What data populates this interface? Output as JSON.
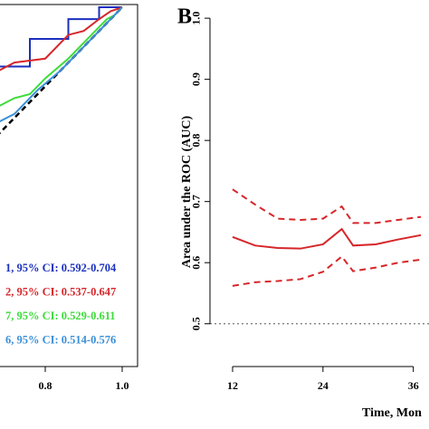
{
  "chart_data": [
    {
      "type": "line",
      "xlim": [
        -0.04,
        1.04
      ],
      "ylim": [
        0.09,
        1.007
      ],
      "xticks": [
        0.8,
        {
          "value": 1.0,
          "label": "1.0"
        }
      ],
      "box": true,
      "reference": {
        "x": [
          0,
          1
        ],
        "values": [
          0,
          1
        ],
        "color": "#000000"
      },
      "series": [
        {
          "name": "1, 95% CI: 0.592-0.704",
          "color": "#1a2fbf",
          "x": [
            0.66,
            0.76,
            0.76,
            0.86,
            0.86,
            0.94,
            0.94,
            1.0
          ],
          "values": [
            0.85,
            0.85,
            0.92,
            0.92,
            0.97,
            0.97,
            1.0,
            1.0
          ]
        },
        {
          "name": "2, 95% CI: 0.537-0.647",
          "color": "#d6262a",
          "x": [
            0.66,
            0.72,
            0.8,
            0.86,
            0.9,
            0.94,
            0.97,
            1.0
          ],
          "values": [
            0.83,
            0.86,
            0.87,
            0.93,
            0.94,
            0.97,
            0.99,
            1.0
          ]
        },
        {
          "name": "7, 95% CI: 0.529-0.611",
          "color": "#3ddc3a",
          "x": [
            0.66,
            0.72,
            0.76,
            0.8,
            0.86,
            0.92,
            0.96,
            0.98,
            1.0
          ],
          "values": [
            0.74,
            0.77,
            0.78,
            0.82,
            0.87,
            0.93,
            0.97,
            0.98,
            1.0
          ]
        },
        {
          "name": "6, 95% CI: 0.514-0.576",
          "color": "#3a8fd8",
          "x": [
            0.66,
            0.72,
            0.78,
            0.84,
            0.9,
            0.96,
            1.0
          ],
          "values": [
            0.7,
            0.73,
            0.79,
            0.84,
            0.9,
            0.96,
            1.0
          ]
        }
      ]
    },
    {
      "type": "line",
      "panel_label": "B",
      "y_label": "Area under the ROC (AUC)",
      "x_label": "Time, Mon",
      "xlim": [
        9,
        40
      ],
      "ylim": [
        0.43,
        1.015
      ],
      "xticks": [
        12,
        24,
        36
      ],
      "yticks": [
        {
          "value": 0.5,
          "label": "0.5"
        },
        0.6,
        0.7,
        0.8,
        0.9,
        {
          "value": 1.0,
          "label": "1.0"
        }
      ],
      "reference": {
        "values": [
          0.5,
          0.5
        ],
        "x": [
          9,
          40
        ],
        "color": "#555555"
      },
      "series": [
        {
          "color": "#d6262a",
          "style": "solid",
          "x": [
            12,
            15,
            18,
            21,
            24,
            26.5,
            28,
            31,
            34,
            37
          ],
          "values": [
            0.642,
            0.628,
            0.624,
            0.623,
            0.63,
            0.655,
            0.628,
            0.63,
            0.638,
            0.645
          ]
        },
        {
          "color": "#d6262a",
          "style": "dashed",
          "x": [
            12,
            15,
            18,
            21,
            24,
            26.5,
            28,
            31,
            34,
            37
          ],
          "values": [
            0.72,
            0.695,
            0.672,
            0.67,
            0.672,
            0.692,
            0.665,
            0.665,
            0.67,
            0.675
          ]
        },
        {
          "color": "#d6262a",
          "style": "dashed",
          "x": [
            12,
            15,
            18,
            21,
            24,
            26.5,
            28,
            31,
            34,
            37
          ],
          "values": [
            0.562,
            0.568,
            0.57,
            0.573,
            0.585,
            0.61,
            0.586,
            0.592,
            0.6,
            0.605
          ]
        }
      ]
    }
  ]
}
